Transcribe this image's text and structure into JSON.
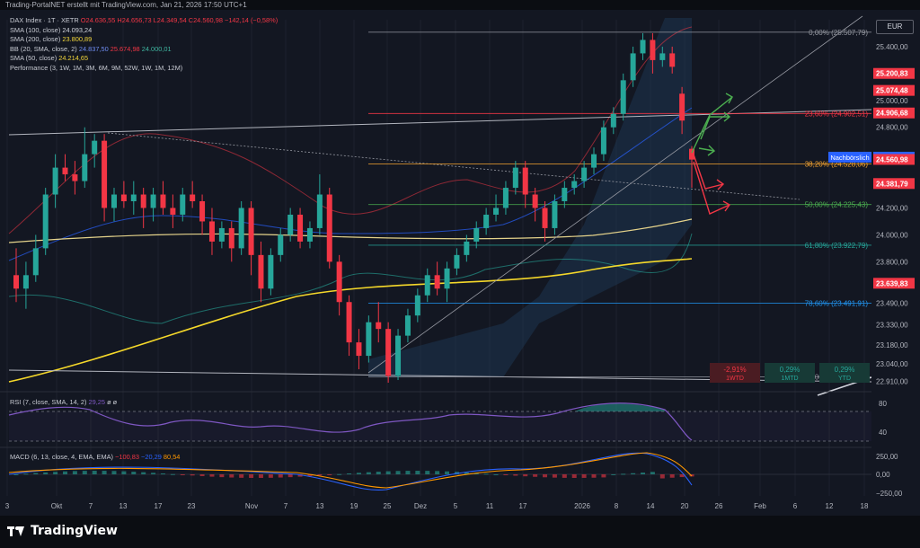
{
  "header": {
    "title": "Trading-PortalNET erstellt mit TradingView.com, Jan 21, 2026 17:50 UTC+1"
  },
  "legend": {
    "symbol": "DAX Index · 1T · XETR",
    "ohlc": "O24.636,55 H24.656,73 L24.349,54 C24.560,98 −142,14 (−0,58%)",
    "sma100_label": "SMA (100, close)",
    "sma100_value": "24.093,24",
    "sma200_label": "SMA (200, close)",
    "sma200_value": "23.800,89",
    "bb_label": "BB (20, SMA, close, 2)",
    "bb_mid": "24.837,50",
    "bb_up": "25.674,98",
    "bb_low": "24.000,01",
    "sma50_label": "SMA (50, close)",
    "sma50_value": "24.214,65",
    "perf_label": "Performance (3, 1W, 1M, 3M, 6M, 9M, 52W, 1W, 1M, 12M)"
  },
  "rsi_legend": {
    "label": "RSI (7, close, SMA, 14, 2)",
    "value": "29,25",
    "extra": "ø ø"
  },
  "macd_legend": {
    "label": "MACD (6, 13, close, 4, EMA, EMA)",
    "hist": "−100,83",
    "macd": "−20,29",
    "signal": "80,54"
  },
  "currency": "EUR",
  "brand": {
    "name": "TradingView",
    "icon": "tradingview-logo-icon"
  },
  "colors": {
    "bg": "#131722",
    "up": "#26a69a",
    "down": "#f23645",
    "sma200": "#f5d82a",
    "sma100": "#e5d38b",
    "bb": "#2962ff",
    "grid": "#1e222d",
    "fib_red": "#f23645",
    "fib_gray": "#787b86"
  },
  "chart_data": {
    "type": "candlestick",
    "x_ticks": [
      "3",
      "Okt",
      "7",
      "13",
      "17",
      "23",
      "Nov",
      "7",
      "13",
      "19",
      "25",
      "Dez",
      "5",
      "11",
      "17",
      "2026",
      "8",
      "14",
      "20",
      "26",
      "Feb",
      "6",
      "12",
      "18"
    ],
    "x_tick_dates": [
      "2025-09-30",
      "2025-10-03",
      "2025-10-07",
      "2025-10-13",
      "2025-10-17",
      "2025-10-23",
      "2025-11-01",
      "2025-11-07",
      "2025-11-13",
      "2025-11-19",
      "2025-11-25",
      "2025-12-01",
      "2025-12-05",
      "2025-12-11",
      "2025-12-17",
      "2026-01-02",
      "2026-01-08",
      "2026-01-14",
      "2026-01-20",
      "2026-01-26",
      "2026-02-01",
      "2026-02-06",
      "2026-02-12",
      "2026-02-18"
    ],
    "y_ticks": [
      "25.400,00",
      "25.000,00",
      "24.800,00",
      "24.200,00",
      "24.000,00",
      "23.800,00",
      "23.490,00",
      "23.330,00",
      "23.180,00",
      "23.040,00",
      "22.910,00"
    ],
    "price_labels": [
      {
        "value": "25.200,83",
        "kind": "red"
      },
      {
        "value": "25.074,48",
        "kind": "red"
      },
      {
        "value": "24.906,68",
        "kind": "red"
      },
      {
        "value": "24.577,81",
        "kind": "blue",
        "tag": "Nachbörslich"
      },
      {
        "value": "24.560,98",
        "kind": "red"
      },
      {
        "value": "24.381,79",
        "kind": "red"
      },
      {
        "value": "23.639,83",
        "kind": "red"
      }
    ],
    "fib_levels": [
      {
        "label": "0,00% (25.507,79)",
        "value": 25507.79,
        "color": "#9598a1"
      },
      {
        "label": "23,60% (24.902,51)",
        "value": 24902.51,
        "color": "#f23645"
      },
      {
        "label": "38,20% (24.528,06)",
        "value": 24528.06,
        "color": "#f7a530"
      },
      {
        "label": "50,00% (24.225,43)",
        "value": 24225.43,
        "color": "#4caf50"
      },
      {
        "label": "61,80% (23.922,79)",
        "value": 23922.79,
        "color": "#26a69a"
      },
      {
        "label": "78,60% (23.491,91)",
        "value": 23491.91,
        "color": "#2196f3"
      },
      {
        "label": "100,00% (22.943,06)",
        "value": 22943.06,
        "color": "#9598a1"
      }
    ],
    "performance": [
      {
        "value": "-2,91%",
        "period": "1WTD",
        "kind": "down"
      },
      {
        "value": "0,29%",
        "period": "1MTD",
        "kind": "up"
      },
      {
        "value": "0,29%",
        "period": "YTD",
        "kind": "up"
      }
    ],
    "candles": [
      [
        23.7,
        23.6,
        23.9,
        23.5
      ],
      [
        23.6,
        23.7,
        23.8,
        23.45
      ],
      [
        23.7,
        23.9,
        24.0,
        23.65
      ],
      [
        23.9,
        24.3,
        24.35,
        23.85
      ],
      [
        24.3,
        24.5,
        24.6,
        24.2
      ],
      [
        24.5,
        24.45,
        24.6,
        24.4
      ],
      [
        24.45,
        24.4,
        24.55,
        24.3
      ],
      [
        24.4,
        24.6,
        24.8,
        24.35
      ],
      [
        24.6,
        24.7,
        24.75,
        24.5
      ],
      [
        24.7,
        24.2,
        24.75,
        24.1
      ],
      [
        24.2,
        24.3,
        24.35,
        24.1
      ],
      [
        24.3,
        24.25,
        24.4,
        24.2
      ],
      [
        24.25,
        24.3,
        24.4,
        24.15
      ],
      [
        24.3,
        24.2,
        24.35,
        24.05
      ],
      [
        24.2,
        24.3,
        24.35,
        24.1
      ],
      [
        24.3,
        24.2,
        24.4,
        24.15
      ],
      [
        24.2,
        24.15,
        24.3,
        24.05
      ],
      [
        24.15,
        24.3,
        24.35,
        24.1
      ],
      [
        24.3,
        24.25,
        24.4,
        24.2
      ],
      [
        24.25,
        24.1,
        24.3,
        24.0
      ],
      [
        24.1,
        23.95,
        24.2,
        23.85
      ],
      [
        23.95,
        24.05,
        24.1,
        23.9
      ],
      [
        24.05,
        23.9,
        24.1,
        23.8
      ],
      [
        23.9,
        24.2,
        24.25,
        23.85
      ],
      [
        24.2,
        23.85,
        24.25,
        23.7
      ],
      [
        23.85,
        23.6,
        23.95,
        23.5
      ],
      [
        23.6,
        23.85,
        23.9,
        23.55
      ],
      [
        23.85,
        24.0,
        24.05,
        23.8
      ],
      [
        24.0,
        24.15,
        24.2,
        23.95
      ],
      [
        24.15,
        23.95,
        24.2,
        23.9
      ],
      [
        23.95,
        24.05,
        24.1,
        23.9
      ],
      [
        24.05,
        24.3,
        24.45,
        24.0
      ],
      [
        24.3,
        23.8,
        24.35,
        23.75
      ],
      [
        23.8,
        23.5,
        23.85,
        23.4
      ],
      [
        23.5,
        23.2,
        23.55,
        23.1
      ],
      [
        23.2,
        23.1,
        23.3,
        23.0
      ],
      [
        23.1,
        23.35,
        23.4,
        23.05
      ],
      [
        23.35,
        23.3,
        23.5,
        23.2
      ],
      [
        23.3,
        22.95,
        23.35,
        22.9
      ],
      [
        22.95,
        23.25,
        23.3,
        22.92
      ],
      [
        23.25,
        23.4,
        23.45,
        23.2
      ],
      [
        23.4,
        23.55,
        23.6,
        23.35
      ],
      [
        23.55,
        23.7,
        23.75,
        23.5
      ],
      [
        23.7,
        23.6,
        23.8,
        23.55
      ],
      [
        23.6,
        23.75,
        23.8,
        23.5
      ],
      [
        23.75,
        23.85,
        23.9,
        23.7
      ],
      [
        23.85,
        23.95,
        24.0,
        23.8
      ],
      [
        23.95,
        24.05,
        24.1,
        23.9
      ],
      [
        24.05,
        24.15,
        24.2,
        24.0
      ],
      [
        24.15,
        24.2,
        24.3,
        24.1
      ],
      [
        24.2,
        24.35,
        24.4,
        24.15
      ],
      [
        24.35,
        24.5,
        24.55,
        24.3
      ],
      [
        24.5,
        24.3,
        24.55,
        24.2
      ],
      [
        24.3,
        24.2,
        24.35,
        24.1
      ],
      [
        24.2,
        24.05,
        24.25,
        23.95
      ],
      [
        24.05,
        24.25,
        24.3,
        24.0
      ],
      [
        24.25,
        24.35,
        24.4,
        24.2
      ],
      [
        24.35,
        24.4,
        24.45,
        24.3
      ],
      [
        24.4,
        24.5,
        24.55,
        24.35
      ],
      [
        24.5,
        24.6,
        24.65,
        24.45
      ],
      [
        24.6,
        24.8,
        24.85,
        24.55
      ],
      [
        24.8,
        24.9,
        24.95,
        24.75
      ],
      [
        24.9,
        25.15,
        25.2,
        24.85
      ],
      [
        25.15,
        25.35,
        25.4,
        25.1
      ],
      [
        25.35,
        25.45,
        25.5,
        25.3
      ],
      [
        25.45,
        25.3,
        25.5,
        25.2
      ],
      [
        25.3,
        25.35,
        25.4,
        25.25
      ],
      [
        25.35,
        25.25,
        25.4,
        25.2
      ],
      [
        25.05,
        24.85,
        25.1,
        24.75
      ],
      [
        24.64,
        24.56,
        24.66,
        24.35
      ]
    ],
    "annotations": [
      "green-arrows-up",
      "red-arrows-down"
    ]
  }
}
